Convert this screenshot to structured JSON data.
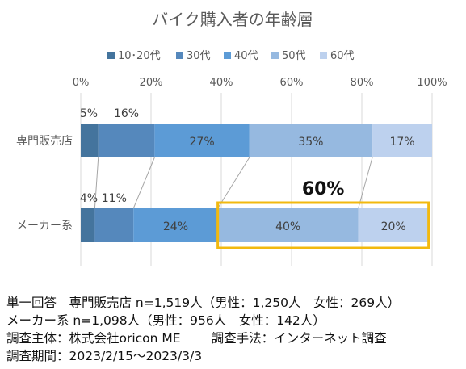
{
  "chart_data": {
    "type": "bar",
    "orientation": "horizontal",
    "stacked": true,
    "title": "バイク購入者の年齢層",
    "categories": [
      "専門販売店",
      "メーカー系"
    ],
    "series": [
      {
        "name": "10･20代",
        "color": "#44749D",
        "values": [
          5,
          4
        ],
        "labels": [
          "5%",
          "4%"
        ]
      },
      {
        "name": "30代",
        "color": "#5588BC",
        "values": [
          16,
          11
        ],
        "labels": [
          "16%",
          "11%"
        ]
      },
      {
        "name": "40代",
        "color": "#5C9BD6",
        "values": [
          27,
          24
        ],
        "labels": [
          "27%",
          "24%"
        ]
      },
      {
        "name": "50代",
        "color": "#96B9E0",
        "values": [
          35,
          40
        ],
        "labels": [
          "35%",
          "40%"
        ]
      },
      {
        "name": "60代",
        "color": "#BDD1EE",
        "values": [
          17,
          20
        ],
        "labels": [
          "17%",
          "20%"
        ]
      }
    ],
    "xlim": [
      0,
      100
    ],
    "xticks": [
      "0%",
      "20%",
      "40%",
      "60%",
      "80%",
      "100%"
    ],
    "grid": true,
    "legend": "top",
    "highlight": {
      "category": "メーカー系",
      "from_series": 3,
      "to_series": 4,
      "label": "60%",
      "color": "#F2B90F"
    }
  },
  "notes": {
    "line1": "単一回答　専門販売店 n=1,519人（男性：1,250人　女性：269人）",
    "line2": "メーカー系 n=1,098人（男性：956人　女性：142人）",
    "line3a": "調査主体：株式会社oricon ME",
    "line3b": "調査手法：インターネット調査",
    "line4": "調査期間：2023/2/15〜2023/3/3"
  }
}
